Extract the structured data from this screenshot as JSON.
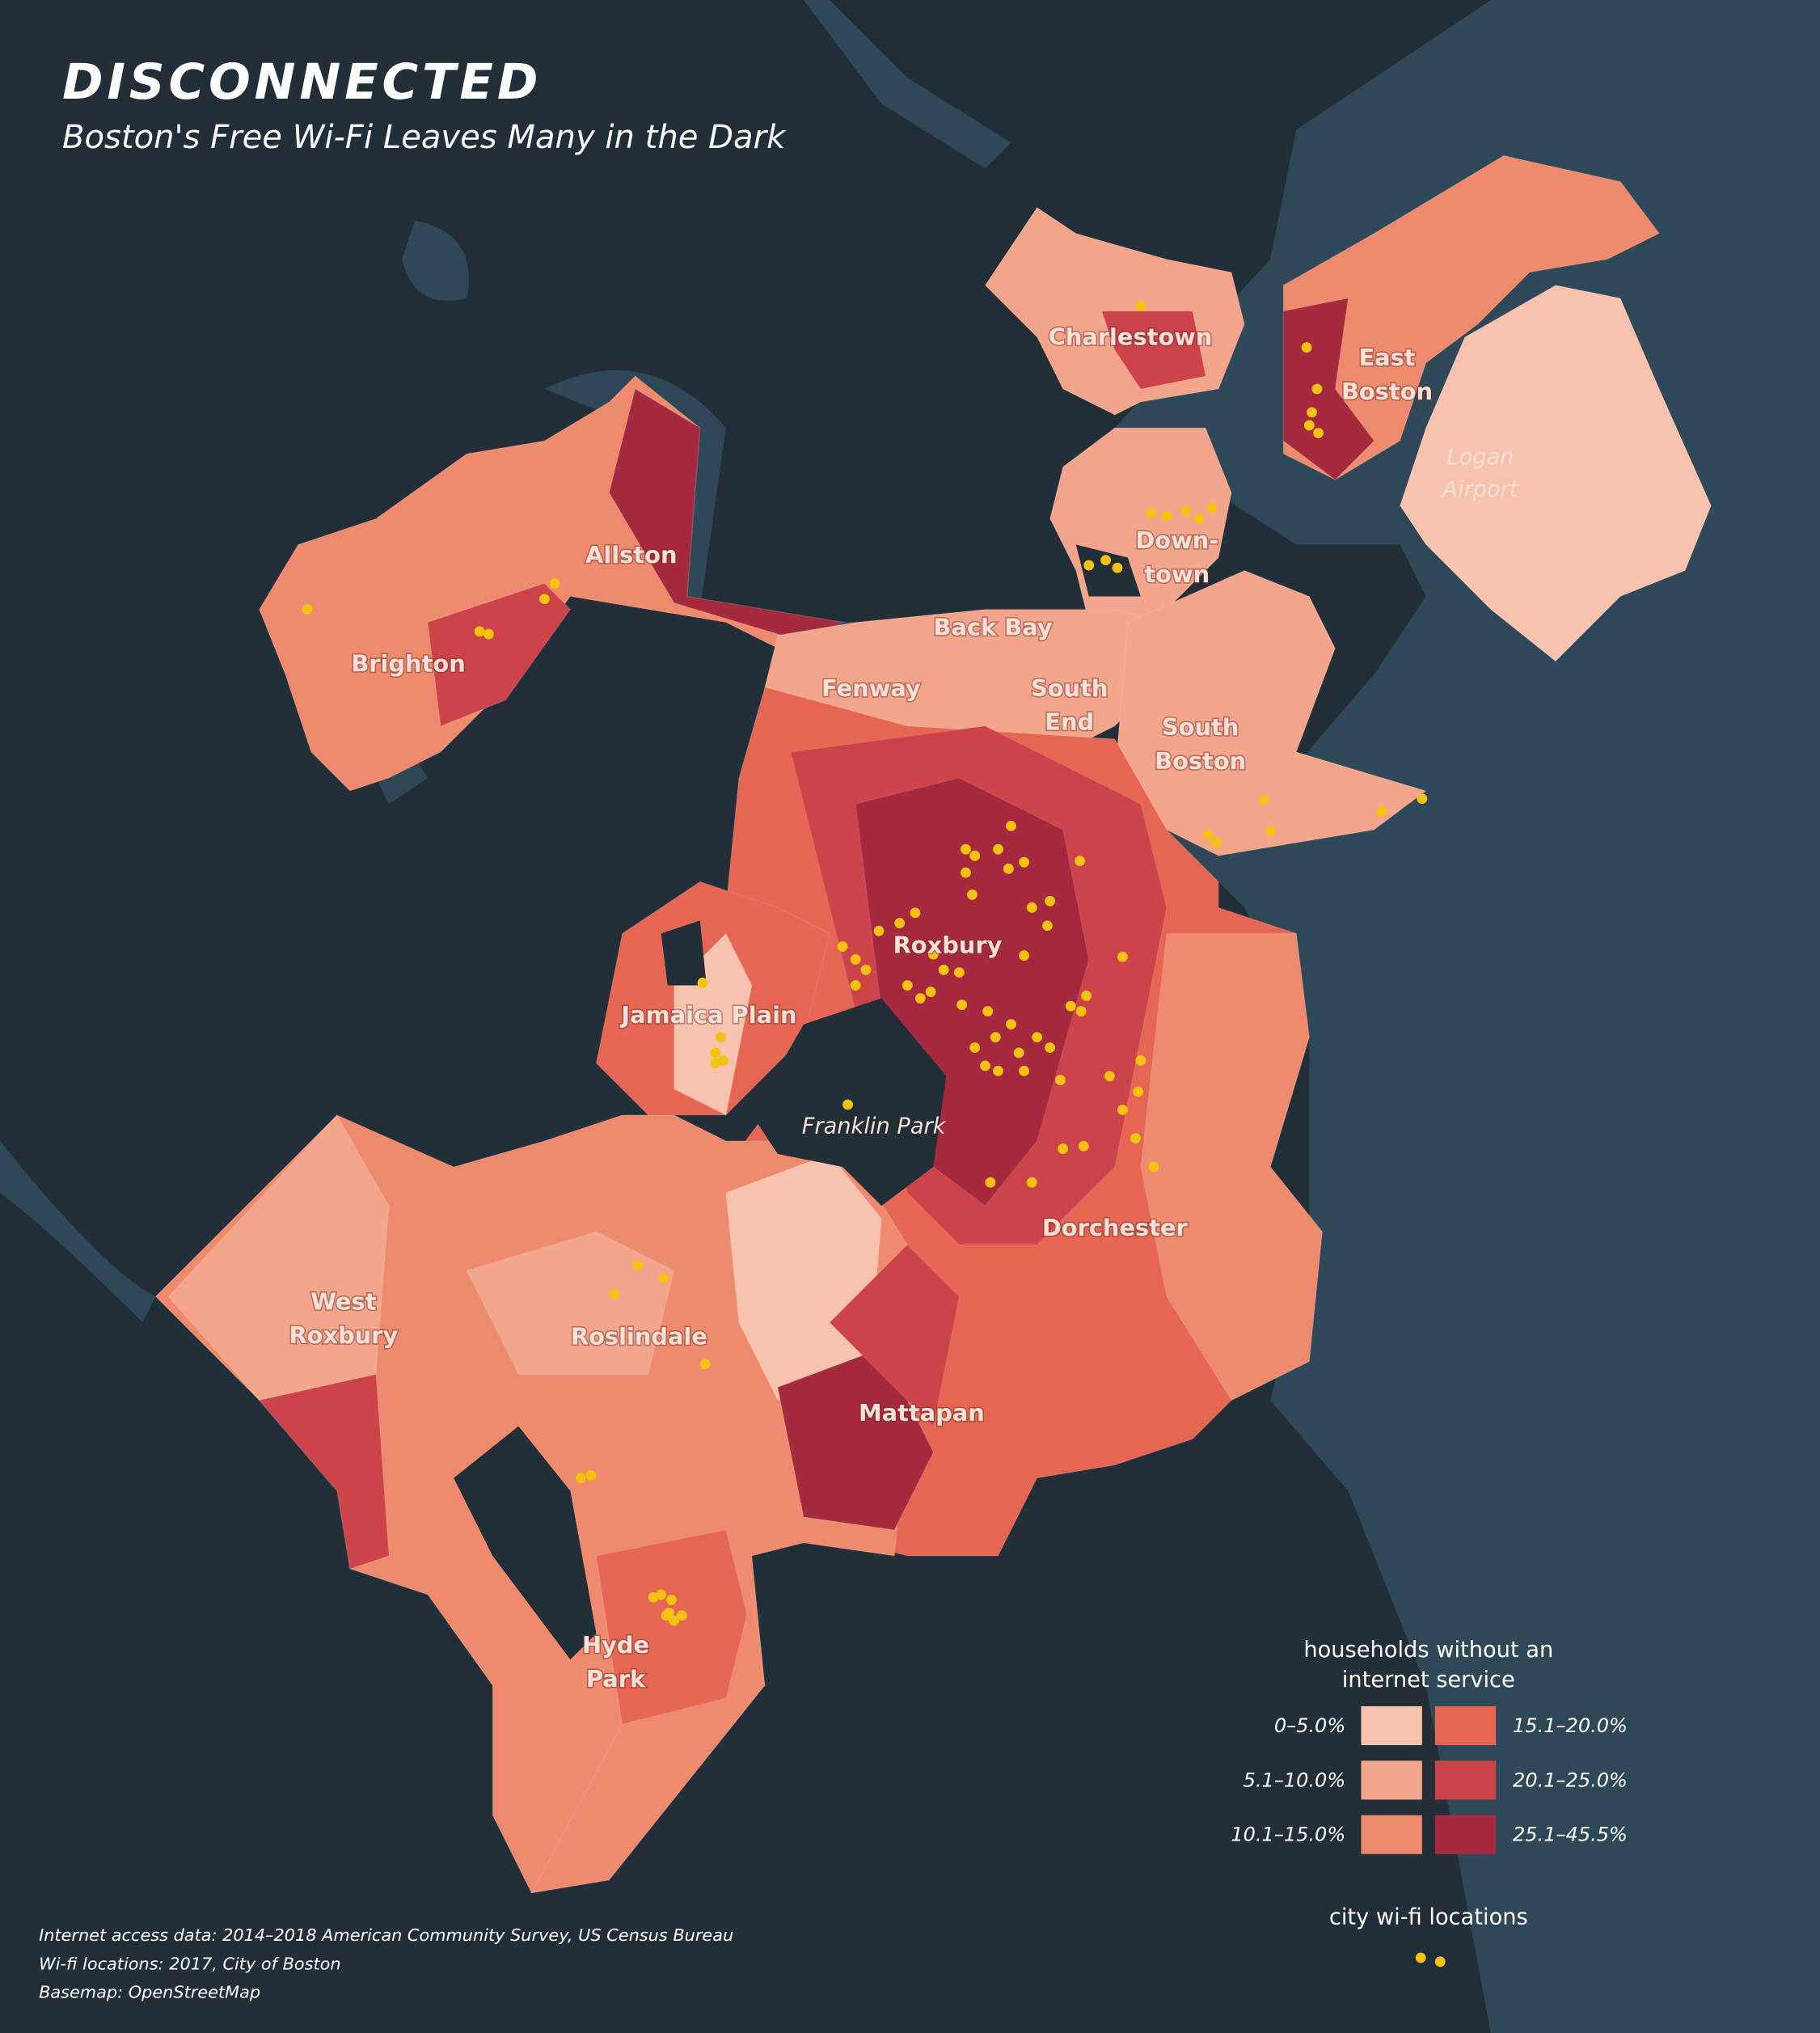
{
  "header": {
    "title": "DISCONNECTED",
    "subtitle": "Boston's Free Wi-Fi Leaves Many in the Dark"
  },
  "neighborhoods": [
    [
      "Charlestown"
    ],
    [
      "East",
      "Boston"
    ],
    [
      "Allston"
    ],
    [
      "Brighton"
    ],
    [
      "Down-",
      "town"
    ],
    [
      "Back Bay"
    ],
    [
      "Fenway"
    ],
    [
      "South",
      "End"
    ],
    [
      "South",
      "Boston"
    ],
    [
      "Roxbury"
    ],
    [
      "Jamaica Plain"
    ],
    [
      "Dorchester"
    ],
    [
      "West",
      "Roxbury"
    ],
    [
      "Roslindale"
    ],
    [
      "Mattapan"
    ],
    [
      "Hyde",
      "Park"
    ]
  ],
  "places": [
    [
      "Logan",
      "Airport"
    ],
    [
      "Franklin Park"
    ]
  ],
  "legend": {
    "title": [
      "households without an",
      "internet service"
    ],
    "classes": [
      {
        "label": "0–5.0%",
        "color": "#f7c3ae"
      },
      {
        "label": "5.1–10.0%",
        "color": "#f3a68b"
      },
      {
        "label": "10.1–15.0%",
        "color": "#ee8b6e"
      },
      {
        "label": "15.1–20.0%",
        "color": "#e46653"
      },
      {
        "label": "20.1–25.0%",
        "color": "#cc434a"
      },
      {
        "label": "25.1–45.5%",
        "color": "#a62a3f"
      }
    ],
    "wifi_title": "city wi-fi locations"
  },
  "sources": [
    "Internet access data: 2014–2018 American Community Survey, US Census Bureau",
    "Wi-fi locations: 2017, City of Boston",
    "Basemap: OpenStreetMap"
  ]
}
